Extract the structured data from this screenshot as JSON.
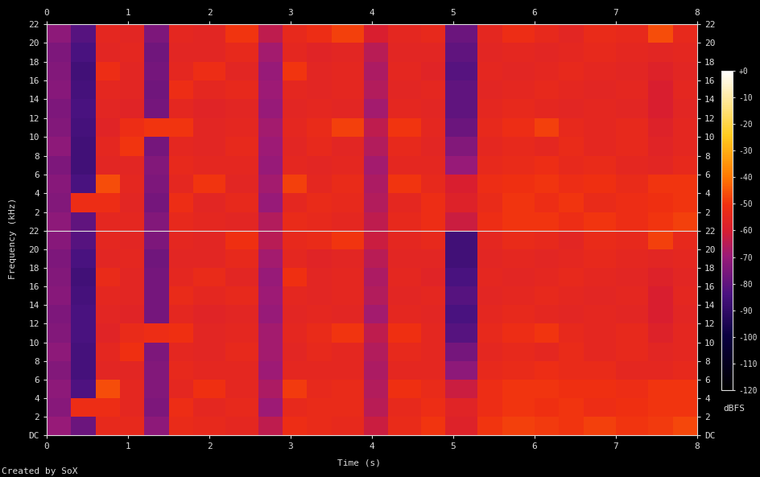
{
  "chart_data": {
    "type": "heatmap",
    "x_label": "Time (s)",
    "y_label": "Frequency (kHz)",
    "footer": "Created by SoX",
    "xlim": [
      0,
      8
    ],
    "xticks": [
      0,
      1,
      2,
      3,
      4,
      5,
      6,
      7,
      8
    ],
    "ylim": [
      0,
      22
    ],
    "x_edges": [
      0,
      0.3,
      0.6,
      0.9,
      1.2,
      1.5,
      1.8,
      2.2,
      2.6,
      2.9,
      3.2,
      3.5,
      3.9,
      4.2,
      4.6,
      4.9,
      5.3,
      5.6,
      6.0,
      6.3,
      6.6,
      7.0,
      7.4,
      7.7,
      8.0
    ],
    "y_edges": [
      0,
      2,
      4,
      6,
      8,
      10,
      12,
      14,
      16,
      18,
      20,
      22
    ],
    "colorbar": {
      "label": "dBFS",
      "range": [
        -120,
        0
      ],
      "ticks": [
        {
          "value": 0,
          "label": "+0"
        },
        -10,
        -20,
        -30,
        -40,
        -50,
        -60,
        -70,
        -80,
        -90,
        -100,
        -110,
        -120
      ]
    },
    "channels": [
      {
        "yticks": [
          2,
          4,
          6,
          8,
          10,
          12,
          14,
          16,
          18,
          20,
          22
        ],
        "cells": [
          [
            -72,
            -80,
            -55,
            -55,
            -74,
            -54,
            -55,
            -56,
            -66,
            -53,
            -54,
            -55,
            -64,
            -54,
            -52,
            -62,
            -52,
            -50,
            -50,
            -52,
            -50,
            -52,
            -50,
            -48
          ],
          [
            -74,
            -52,
            -52,
            -56,
            -76,
            -52,
            -56,
            -54,
            -70,
            -55,
            -53,
            -54,
            -66,
            -55,
            -52,
            -58,
            -53,
            -50,
            -52,
            -50,
            -53,
            -52,
            -51,
            -50
          ],
          [
            -73,
            -84,
            -46,
            -55,
            -75,
            -55,
            -50,
            -56,
            -68,
            -48,
            -55,
            -53,
            -67,
            -50,
            -54,
            -60,
            -52,
            -51,
            -50,
            -52,
            -51,
            -53,
            -50,
            -50
          ],
          [
            -75,
            -86,
            -56,
            -56,
            -74,
            -54,
            -55,
            -55,
            -70,
            -55,
            -56,
            -55,
            -68,
            -55,
            -55,
            -70,
            -54,
            -53,
            -52,
            -54,
            -53,
            -55,
            -56,
            -54
          ],
          [
            -72,
            -86,
            -55,
            -50,
            -76,
            -55,
            -56,
            -54,
            -69,
            -56,
            -54,
            -56,
            -66,
            -54,
            -56,
            -74,
            -55,
            -54,
            -55,
            -53,
            -55,
            -54,
            -57,
            -55
          ],
          [
            -74,
            -85,
            -57,
            -52,
            -50,
            -50,
            -56,
            -55,
            -68,
            -55,
            -53,
            -48,
            -64,
            -50,
            -55,
            -78,
            -54,
            -52,
            -48,
            -54,
            -55,
            -54,
            -58,
            -55
          ],
          [
            -75,
            -84,
            -56,
            -57,
            -76,
            -55,
            -57,
            -56,
            -70,
            -56,
            -55,
            -56,
            -68,
            -55,
            -56,
            -80,
            -55,
            -54,
            -55,
            -56,
            -55,
            -56,
            -60,
            -56
          ],
          [
            -73,
            -85,
            -55,
            -56,
            -77,
            -52,
            -55,
            -54,
            -69,
            -55,
            -56,
            -55,
            -66,
            -56,
            -55,
            -80,
            -56,
            -55,
            -54,
            -55,
            -56,
            -55,
            -60,
            -55
          ],
          [
            -74,
            -86,
            -52,
            -56,
            -76,
            -55,
            -52,
            -56,
            -70,
            -50,
            -56,
            -55,
            -67,
            -55,
            -57,
            -82,
            -55,
            -56,
            -55,
            -54,
            -55,
            -56,
            -58,
            -56
          ],
          [
            -75,
            -84,
            -56,
            -55,
            -77,
            -56,
            -56,
            -54,
            -68,
            -55,
            -57,
            -56,
            -65,
            -56,
            -56,
            -80,
            -56,
            -55,
            -56,
            -55,
            -54,
            -55,
            -56,
            -55
          ],
          [
            -72,
            -82,
            -55,
            -56,
            -75,
            -55,
            -56,
            -50,
            -64,
            -54,
            -52,
            -48,
            -60,
            -55,
            -54,
            -78,
            -55,
            -52,
            -54,
            -56,
            -53,
            -54,
            -46,
            -54
          ]
        ]
      },
      {
        "yticks": [
          {
            "value": 0,
            "label": "DC"
          },
          2,
          4,
          6,
          8,
          10,
          12,
          14,
          16,
          18,
          20,
          22
        ],
        "cells": [
          [
            -70,
            -78,
            -54,
            -54,
            -72,
            -53,
            -54,
            -55,
            -64,
            -52,
            -53,
            -54,
            -62,
            -53,
            -50,
            -58,
            -50,
            -48,
            -49,
            -50,
            -48,
            -50,
            -49,
            -47
          ],
          [
            -73,
            -52,
            -52,
            -55,
            -75,
            -52,
            -55,
            -54,
            -69,
            -54,
            -53,
            -53,
            -65,
            -54,
            -52,
            -57,
            -52,
            -50,
            -51,
            -50,
            -52,
            -51,
            -50,
            -50
          ],
          [
            -72,
            -83,
            -46,
            -55,
            -74,
            -55,
            -51,
            -55,
            -67,
            -49,
            -54,
            -53,
            -66,
            -51,
            -53,
            -62,
            -52,
            -50,
            -50,
            -51,
            -51,
            -52,
            -50,
            -50
          ],
          [
            -74,
            -85,
            -56,
            -56,
            -74,
            -54,
            -55,
            -55,
            -69,
            -55,
            -55,
            -55,
            -67,
            -55,
            -55,
            -72,
            -54,
            -53,
            -52,
            -53,
            -53,
            -55,
            -55,
            -54
          ],
          [
            -72,
            -85,
            -55,
            -51,
            -75,
            -55,
            -56,
            -54,
            -68,
            -56,
            -54,
            -55,
            -66,
            -54,
            -55,
            -76,
            -55,
            -54,
            -55,
            -53,
            -55,
            -54,
            -56,
            -55
          ],
          [
            -74,
            -84,
            -57,
            -53,
            -52,
            -51,
            -56,
            -55,
            -68,
            -55,
            -53,
            -50,
            -64,
            -51,
            -55,
            -82,
            -54,
            -52,
            -50,
            -54,
            -55,
            -54,
            -58,
            -55
          ],
          [
            -75,
            -84,
            -56,
            -57,
            -76,
            -55,
            -57,
            -56,
            -70,
            -56,
            -55,
            -56,
            -68,
            -55,
            -56,
            -84,
            -55,
            -54,
            -55,
            -56,
            -55,
            -56,
            -60,
            -56
          ],
          [
            -73,
            -85,
            -55,
            -56,
            -76,
            -53,
            -55,
            -54,
            -69,
            -55,
            -56,
            -55,
            -66,
            -56,
            -55,
            -82,
            -56,
            -55,
            -54,
            -55,
            -56,
            -55,
            -60,
            -55
          ],
          [
            -74,
            -86,
            -53,
            -56,
            -76,
            -55,
            -53,
            -56,
            -70,
            -51,
            -56,
            -55,
            -67,
            -55,
            -57,
            -84,
            -55,
            -56,
            -55,
            -54,
            -55,
            -56,
            -58,
            -56
          ],
          [
            -75,
            -84,
            -56,
            -55,
            -77,
            -56,
            -56,
            -54,
            -68,
            -55,
            -57,
            -56,
            -65,
            -56,
            -56,
            -86,
            -56,
            -55,
            -56,
            -55,
            -54,
            -55,
            -56,
            -55
          ],
          [
            -73,
            -82,
            -55,
            -56,
            -75,
            -55,
            -56,
            -51,
            -65,
            -54,
            -53,
            -50,
            -62,
            -55,
            -54,
            -86,
            -55,
            -53,
            -54,
            -56,
            -53,
            -54,
            -48,
            -54
          ]
        ]
      }
    ]
  }
}
